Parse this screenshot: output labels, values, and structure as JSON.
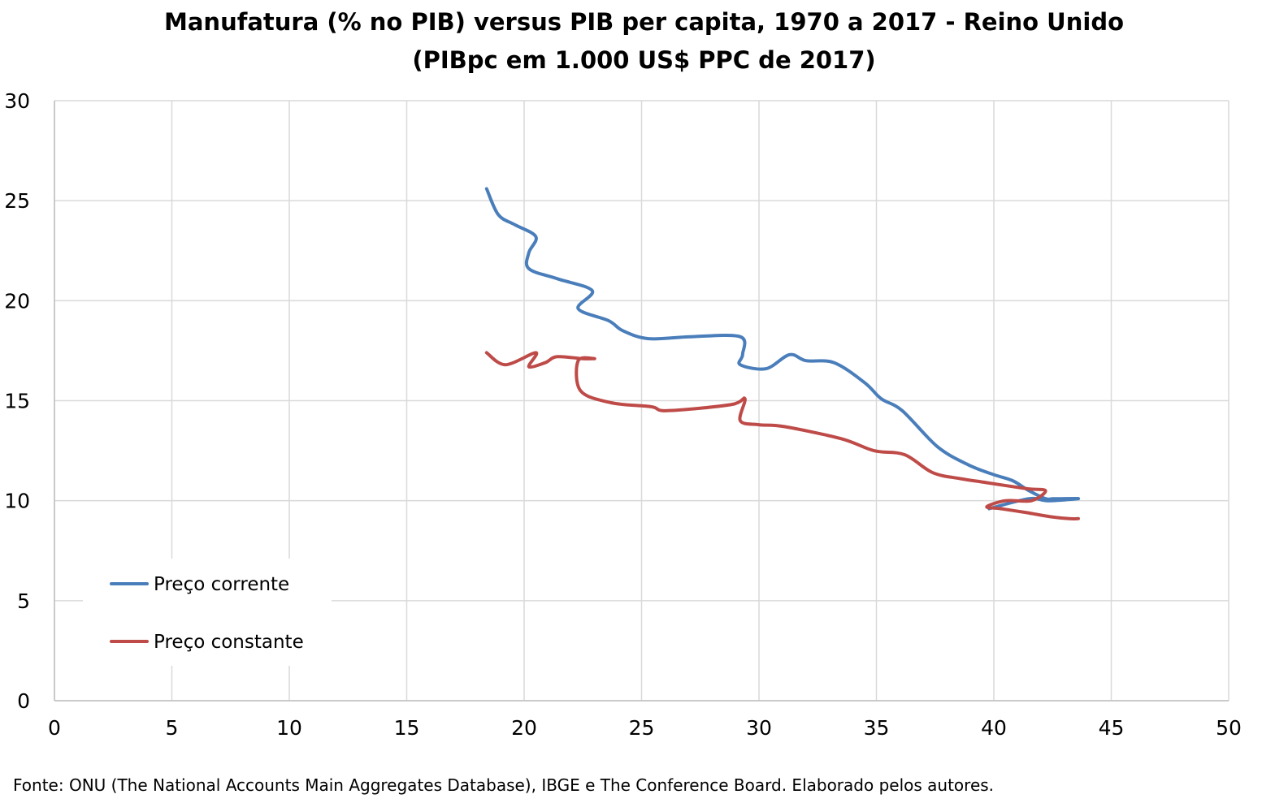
{
  "chart_data": {
    "type": "line",
    "title": "Manufatura (% no PIB) versus PIB per capita, 1970 a 2017 - Reino Unido",
    "subtitle": "(PIBpc em 1.000 US$ PPC de 2017)",
    "xlabel": "",
    "ylabel": "",
    "xlim": [
      0,
      50
    ],
    "ylim": [
      0,
      30
    ],
    "x_ticks": [
      "0",
      "5",
      "10",
      "15",
      "20",
      "25",
      "30",
      "35",
      "40",
      "45",
      "50"
    ],
    "y_ticks": [
      "0",
      "5",
      "10",
      "15",
      "20",
      "25",
      "30"
    ],
    "grid": true,
    "legend_position": "lower-left",
    "series": [
      {
        "name": "Preço corrente",
        "color": "#4a7ebb",
        "points": [
          [
            18.4,
            25.6
          ],
          [
            18.9,
            24.3
          ],
          [
            19.6,
            23.8
          ],
          [
            20.5,
            23.2
          ],
          [
            20.2,
            22.4
          ],
          [
            20.2,
            21.6
          ],
          [
            21.4,
            21.1
          ],
          [
            22.9,
            20.5
          ],
          [
            22.3,
            19.6
          ],
          [
            23.6,
            19.0
          ],
          [
            24.2,
            18.5
          ],
          [
            25.3,
            18.1
          ],
          [
            27.1,
            18.2
          ],
          [
            29.2,
            18.2
          ],
          [
            29.3,
            17.3
          ],
          [
            29.2,
            16.8
          ],
          [
            30.3,
            16.6
          ],
          [
            31.3,
            17.3
          ],
          [
            32.0,
            17.0
          ],
          [
            33.2,
            16.9
          ],
          [
            34.5,
            15.9
          ],
          [
            35.2,
            15.1
          ],
          [
            36.1,
            14.5
          ],
          [
            37.6,
            12.7
          ],
          [
            38.9,
            11.8
          ],
          [
            40.0,
            11.3
          ],
          [
            40.8,
            11.0
          ],
          [
            41.5,
            10.5
          ],
          [
            42.2,
            10.1
          ],
          [
            42.5,
            10.1
          ],
          [
            42.8,
            10.1
          ],
          [
            43.6,
            10.1
          ],
          [
            42.3,
            10.0
          ],
          [
            41.5,
            10.1
          ],
          [
            39.8,
            9.6
          ]
        ]
      },
      {
        "name": "Preço constante",
        "color": "#be4b48",
        "points": [
          [
            18.4,
            17.4
          ],
          [
            19.2,
            16.8
          ],
          [
            20.5,
            17.4
          ],
          [
            20.2,
            16.7
          ],
          [
            20.9,
            16.9
          ],
          [
            21.4,
            17.2
          ],
          [
            22.5,
            17.1
          ],
          [
            23.0,
            17.1
          ],
          [
            22.3,
            17.0
          ],
          [
            22.4,
            15.5
          ],
          [
            23.7,
            14.9
          ],
          [
            25.4,
            14.7
          ],
          [
            26.1,
            14.5
          ],
          [
            28.8,
            14.8
          ],
          [
            29.4,
            15.1
          ],
          [
            29.2,
            14.0
          ],
          [
            30.0,
            13.8
          ],
          [
            31.1,
            13.7
          ],
          [
            33.5,
            13.1
          ],
          [
            34.9,
            12.5
          ],
          [
            36.2,
            12.3
          ],
          [
            37.4,
            11.4
          ],
          [
            38.6,
            11.1
          ],
          [
            39.7,
            10.9
          ],
          [
            41.4,
            10.6
          ],
          [
            42.2,
            10.5
          ],
          [
            41.6,
            10.0
          ],
          [
            40.5,
            10.0
          ],
          [
            39.7,
            9.7
          ],
          [
            40.3,
            9.6
          ],
          [
            41.4,
            9.4
          ],
          [
            42.4,
            9.2
          ],
          [
            43.2,
            9.1
          ],
          [
            43.6,
            9.1
          ]
        ]
      }
    ]
  },
  "source": "Fonte: ONU (The National Accounts Main Aggregates Database), IBGE e The Conference Board. Elaborado pelos autores."
}
